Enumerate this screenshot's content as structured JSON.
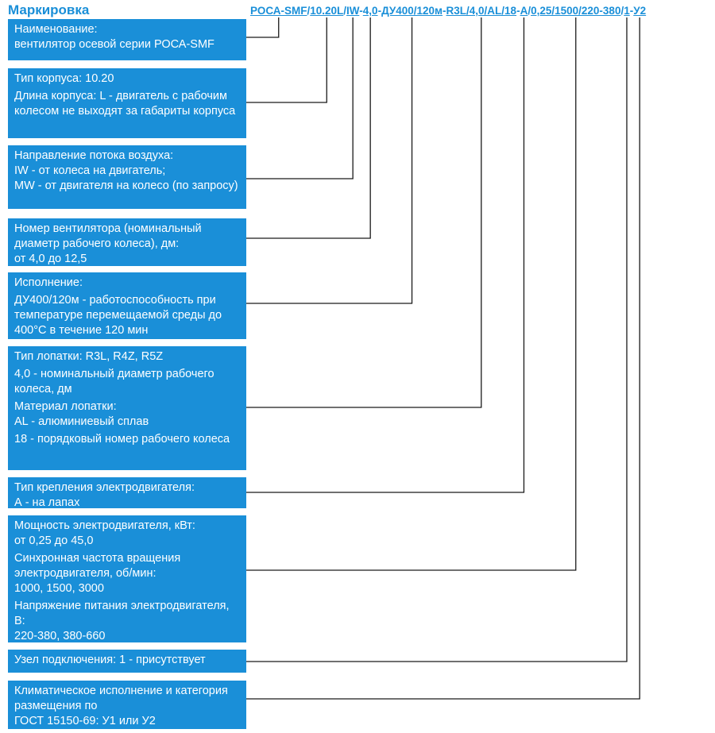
{
  "header": {
    "title": "Маркировка"
  },
  "code": [
    "РОСА-SMF",
    "/",
    "10.20L",
    "/",
    "IW",
    "-",
    "4,0",
    "-",
    "ДУ400/120м",
    "-",
    "R3L/4,0/AL/18",
    "-",
    "А",
    "/",
    "0,25/1500/220-380",
    "/",
    "1",
    "-",
    "У2"
  ],
  "boxes": [
    {
      "paragraphs": [
        "Наименование:\nвентилятор осевой серии РОСА-SMF"
      ]
    },
    {
      "paragraphs": [
        "Тип корпуса: 10.20",
        "Длина корпуса: L - двигатель с рабочим колесом не выходят за габариты корпуса"
      ]
    },
    {
      "paragraphs": [
        "Направление потока воздуха:\nIW - от колеса на двигатель;\nMW - от двигателя на колесо (по запросу)"
      ]
    },
    {
      "paragraphs": [
        "Номер вентилятора (номинальный диаметр рабочего колеса), дм:\nот 4,0 до 12,5"
      ]
    },
    {
      "paragraphs": [
        "Исполнение:",
        "ДУ400/120м - работоспособность при температуре перемещаемой среды до 400°С в течение 120 мин"
      ]
    },
    {
      "paragraphs": [
        "Тип лопатки: R3L, R4Z, R5Z",
        "4,0 - номинальный диаметр рабочего колеса, дм",
        "Материал лопатки:\nAL - алюминиевый сплав",
        "18 - порядковый номер рабочего колеса"
      ]
    },
    {
      "paragraphs": [
        "Тип крепления электродвигателя:\nА - на лапах"
      ]
    },
    {
      "paragraphs": [
        "Мощность электродвигателя, кВт:\nот 0,25 до 45,0",
        "Синхронная частота вращения электродвигателя, об/мин:\n1000, 1500, 3000",
        "Напряжение питания электродвигателя, В:\n220-380, 380-660"
      ]
    },
    {
      "paragraphs": [
        "Узел подключения: 1 - присутствует"
      ]
    },
    {
      "paragraphs": [
        "Климатическое исполнение и категория размещения по\nГОСТ 15150-69: У1 или У2"
      ]
    }
  ]
}
